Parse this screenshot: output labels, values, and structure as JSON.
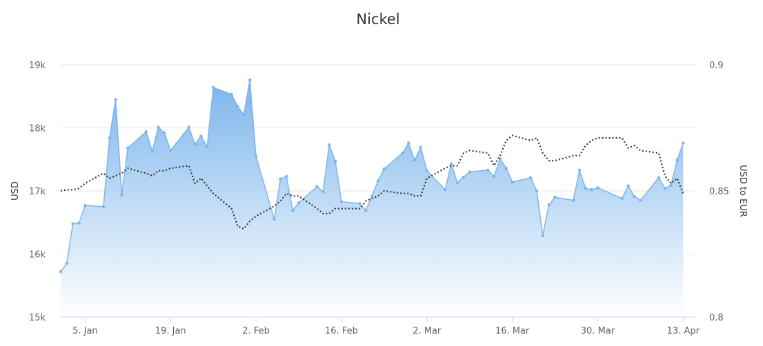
{
  "chart_data": {
    "type": "area",
    "title": "Nickel",
    "ylabel_left": "USD",
    "ylabel_right": "USD to EUR",
    "ylim_left": [
      15000,
      19000
    ],
    "ylim_right": [
      0.8,
      0.9
    ],
    "yticks_left": [
      {
        "value": 15000,
        "label": "15k"
      },
      {
        "value": 16000,
        "label": "16k"
      },
      {
        "value": 17000,
        "label": "17k"
      },
      {
        "value": 18000,
        "label": "18k"
      },
      {
        "value": 19000,
        "label": "19k"
      }
    ],
    "yticks_right": [
      {
        "value": 0.8,
        "label": "0.8"
      },
      {
        "value": 0.85,
        "label": "0.85"
      },
      {
        "value": 0.9,
        "label": "0.9"
      }
    ],
    "xlim": [
      "2018-01-01",
      "2018-04-15"
    ],
    "xticks": [
      {
        "date": "2018-01-05",
        "label": "5. Jan"
      },
      {
        "date": "2018-01-19",
        "label": "19. Jan"
      },
      {
        "date": "2018-02-02",
        "label": "2. Feb"
      },
      {
        "date": "2018-02-16",
        "label": "16. Feb"
      },
      {
        "date": "2018-03-02",
        "label": "2. Mar"
      },
      {
        "date": "2018-03-16",
        "label": "16. Mar"
      },
      {
        "date": "2018-03-30",
        "label": "30. Mar"
      },
      {
        "date": "2018-04-13",
        "label": "13. Apr"
      }
    ],
    "grid": true,
    "colors": {
      "area_top": "#7cb5ec",
      "area_bottom": "#ffffff",
      "line": "#7cb5ec",
      "fx_line": "#333333",
      "grid": "#e6e6e6",
      "axis": "#ccd6eb"
    },
    "series": [
      {
        "type": "area",
        "axis": "left",
        "x": [
          "2018-01-01",
          "2018-01-02",
          "2018-01-03",
          "2018-01-04",
          "2018-01-05",
          "2018-01-08",
          "2018-01-09",
          "2018-01-10",
          "2018-01-11",
          "2018-01-12",
          "2018-01-15",
          "2018-01-16",
          "2018-01-17",
          "2018-01-18",
          "2018-01-19",
          "2018-01-22",
          "2018-01-23",
          "2018-01-24",
          "2018-01-25",
          "2018-01-26",
          "2018-01-29",
          "2018-01-30",
          "2018-01-31",
          "2018-02-01",
          "2018-02-02",
          "2018-02-05",
          "2018-02-06",
          "2018-02-07",
          "2018-02-08",
          "2018-02-09",
          "2018-02-12",
          "2018-02-13",
          "2018-02-14",
          "2018-02-15",
          "2018-02-16",
          "2018-02-19",
          "2018-02-20",
          "2018-02-21",
          "2018-02-22",
          "2018-02-23",
          "2018-02-26",
          "2018-02-27",
          "2018-02-28",
          "2018-03-01",
          "2018-03-02",
          "2018-03-05",
          "2018-03-06",
          "2018-03-07",
          "2018-03-08",
          "2018-03-09",
          "2018-03-12",
          "2018-03-13",
          "2018-03-14",
          "2018-03-15",
          "2018-03-16",
          "2018-03-19",
          "2018-03-20",
          "2018-03-21",
          "2018-03-22",
          "2018-03-23",
          "2018-03-26",
          "2018-03-27",
          "2018-03-28",
          "2018-03-29",
          "2018-03-30",
          "2018-04-03",
          "2018-04-04",
          "2018-04-05",
          "2018-04-06",
          "2018-04-09",
          "2018-04-10",
          "2018-04-11",
          "2018-04-12",
          "2018-04-13"
        ],
        "values": [
          15720,
          15850,
          16480,
          16490,
          16770,
          16750,
          17840,
          18450,
          16940,
          17680,
          17940,
          17630,
          18010,
          17920,
          17640,
          18010,
          17740,
          17870,
          17700,
          18640,
          18530,
          18340,
          18210,
          18760,
          17550,
          16550,
          17190,
          17230,
          16690,
          16810,
          17070,
          16990,
          17730,
          17470,
          16830,
          16800,
          16690,
          16920,
          17160,
          17350,
          17600,
          17760,
          17490,
          17690,
          17320,
          17020,
          17430,
          17130,
          17220,
          17300,
          17330,
          17230,
          17510,
          17360,
          17140,
          17210,
          17000,
          16290,
          16780,
          16900,
          16850,
          17330,
          17040,
          17020,
          17050,
          16880,
          17080,
          16910,
          16850,
          17210,
          17040,
          17090,
          17490,
          17760
        ]
      },
      {
        "type": "line",
        "axis": "right",
        "style": "dotted",
        "x": [
          "2018-01-01",
          "2018-01-02",
          "2018-01-03",
          "2018-01-04",
          "2018-01-05",
          "2018-01-08",
          "2018-01-09",
          "2018-01-10",
          "2018-01-11",
          "2018-01-12",
          "2018-01-15",
          "2018-01-16",
          "2018-01-17",
          "2018-01-18",
          "2018-01-19",
          "2018-01-22",
          "2018-01-23",
          "2018-01-24",
          "2018-01-25",
          "2018-01-26",
          "2018-01-29",
          "2018-01-30",
          "2018-01-31",
          "2018-02-01",
          "2018-02-02",
          "2018-02-05",
          "2018-02-06",
          "2018-02-07",
          "2018-02-08",
          "2018-02-09",
          "2018-02-12",
          "2018-02-13",
          "2018-02-14",
          "2018-02-15",
          "2018-02-16",
          "2018-02-19",
          "2018-02-20",
          "2018-02-21",
          "2018-02-22",
          "2018-02-23",
          "2018-02-26",
          "2018-02-27",
          "2018-02-28",
          "2018-03-01",
          "2018-03-02",
          "2018-03-05",
          "2018-03-06",
          "2018-03-07",
          "2018-03-08",
          "2018-03-09",
          "2018-03-12",
          "2018-03-13",
          "2018-03-14",
          "2018-03-15",
          "2018-03-16",
          "2018-03-19",
          "2018-03-20",
          "2018-03-21",
          "2018-03-22",
          "2018-03-23",
          "2018-03-26",
          "2018-03-27",
          "2018-03-28",
          "2018-03-29",
          "2018-03-30",
          "2018-04-03",
          "2018-04-04",
          "2018-04-05",
          "2018-04-06",
          "2018-04-09",
          "2018-04-10",
          "2018-04-11",
          "2018-04-12",
          "2018-04-13"
        ],
        "values": [
          0.85,
          0.8505,
          0.8505,
          0.851,
          0.853,
          0.857,
          0.855,
          0.856,
          0.857,
          0.859,
          0.857,
          0.856,
          0.858,
          0.858,
          0.859,
          0.86,
          0.853,
          0.855,
          0.852,
          0.849,
          0.843,
          0.836,
          0.835,
          0.838,
          0.84,
          0.844,
          0.846,
          0.849,
          0.848,
          0.848,
          0.843,
          0.841,
          0.841,
          0.843,
          0.843,
          0.843,
          0.846,
          0.847,
          0.848,
          0.85,
          0.849,
          0.849,
          0.848,
          0.848,
          0.855,
          0.859,
          0.86,
          0.86,
          0.865,
          0.866,
          0.865,
          0.86,
          0.864,
          0.87,
          0.872,
          0.87,
          0.871,
          0.865,
          0.862,
          0.862,
          0.864,
          0.864,
          0.868,
          0.87,
          0.871,
          0.871,
          0.867,
          0.868,
          0.866,
          0.865,
          0.856,
          0.853,
          0.855,
          0.849
        ]
      }
    ]
  }
}
